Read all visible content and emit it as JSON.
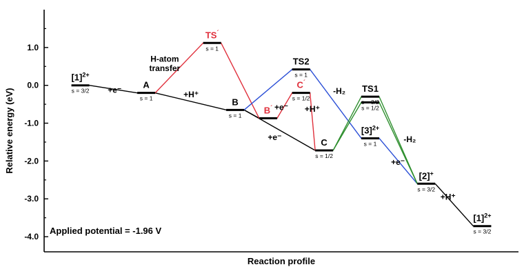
{
  "chart_data": {
    "type": "line",
    "title": "",
    "xlabel": "Reaction profile",
    "ylabel": "Relative energy (eV)",
    "ylim": [
      -4.4,
      2.0
    ],
    "yticks": [
      "1.0",
      "0.0",
      "-1.0",
      "-2.0",
      "-3.0",
      "-4.0"
    ],
    "ytick_values": [
      1.0,
      0.0,
      -1.0,
      -2.0,
      -3.0,
      -4.0
    ],
    "grid": false,
    "legend": "none",
    "annotation": "Applied potential = -1.96 V",
    "colors": {
      "black": "#000000",
      "red": "#e0303c",
      "blue": "#2b4fd6",
      "green": "#2f8f2f",
      "level": "#000000"
    },
    "states": [
      {
        "key": "s1",
        "label": "[1]",
        "sup": "2+",
        "spin": "s = 3/2",
        "y": 0.0,
        "x": 1.0,
        "label_color": "black"
      },
      {
        "key": "A",
        "label": "A",
        "sup": "",
        "spin": "s = 1",
        "y": -0.2,
        "x": 2.0,
        "label_color": "black"
      },
      {
        "key": "TSp",
        "label": "TS",
        "sup": "´",
        "spin": "s = 1",
        "y": 1.12,
        "x": 3.0,
        "label_color": "red"
      },
      {
        "key": "B",
        "label": "B",
        "sup": "",
        "spin": "s = 1",
        "y": -0.65,
        "x": 3.35,
        "label_color": "black"
      },
      {
        "key": "Bp",
        "label": "B",
        "sup": "´",
        "spin": "",
        "y": -0.87,
        "x": 3.85,
        "label_color": "red"
      },
      {
        "key": "TS2",
        "label": "TS2",
        "sup": "",
        "spin": "s = 1",
        "y": 0.42,
        "x": 4.35,
        "label_color": "black"
      },
      {
        "key": "Cp",
        "label": "C",
        "sup": "´",
        "spin": "s = 1/2",
        "y": -0.2,
        "x": 4.35,
        "label_color": "red"
      },
      {
        "key": "C",
        "label": "C",
        "sup": "",
        "spin": "s = 1/2",
        "y": -1.72,
        "x": 4.7,
        "label_color": "black"
      },
      {
        "key": "TS1a",
        "label": "TS1",
        "sup": "",
        "spin": "s = 3/2",
        "y": -0.3,
        "x": 5.4,
        "label_color": "black"
      },
      {
        "key": "TS1b",
        "label": "",
        "sup": "",
        "spin": "s = 1/2",
        "y": -0.45,
        "x": 5.4,
        "label_color": "black"
      },
      {
        "key": "s3",
        "label": "[3]",
        "sup": "2+",
        "spin": "s = 1",
        "y": -1.4,
        "x": 5.4,
        "label_color": "black"
      },
      {
        "key": "s2",
        "label": "[2]",
        "sup": "+",
        "spin": "s = 3/2",
        "y": -2.6,
        "x": 6.25,
        "label_color": "black"
      },
      {
        "key": "s1b",
        "label": "[1]",
        "sup": "2+",
        "spin": "s = 3/2",
        "y": -3.72,
        "x": 7.1,
        "label_color": "black"
      }
    ],
    "series": [
      {
        "color": "black",
        "path": [
          "s1",
          "A",
          "B",
          "C"
        ]
      },
      {
        "color": "black",
        "path": [
          "B",
          "Bp"
        ]
      },
      {
        "color": "black",
        "path": [
          "s2",
          "s1b"
        ]
      },
      {
        "color": "red",
        "path": [
          "A",
          "TSp",
          "Bp",
          "Cp",
          "C"
        ]
      },
      {
        "color": "blue",
        "path": [
          "B",
          "TS2",
          "s3",
          "s2"
        ]
      },
      {
        "color": "green",
        "path": [
          "C",
          "TS1a",
          "s2"
        ]
      },
      {
        "color": "green",
        "path": [
          "C",
          "TS1b",
          "s2"
        ]
      }
    ],
    "step_labels": [
      {
        "text": "H-atom",
        "color": "black",
        "x": 2.28,
        "y": 0.62
      },
      {
        "text": "transfer",
        "color": "black",
        "x": 2.28,
        "y": 0.38
      },
      {
        "text": "+e⁻",
        "color": "black",
        "x": 1.52,
        "y": -0.2
      },
      {
        "text": "+H⁺",
        "color": "black",
        "x": 2.68,
        "y": -0.32
      },
      {
        "text": "+e⁻",
        "color": "black",
        "x": 4.05,
        "y": -0.65
      },
      {
        "text": "+H⁺",
        "color": "black",
        "x": 4.52,
        "y": -0.7
      },
      {
        "text": "+e⁻",
        "color": "black",
        "x": 3.95,
        "y": -1.45
      },
      {
        "text": "-H₂",
        "color": "black",
        "x": 4.93,
        "y": -0.22
      },
      {
        "text": "-H₂",
        "color": "black",
        "x": 6.0,
        "y": -1.5
      },
      {
        "text": "+e⁻",
        "color": "black",
        "x": 5.82,
        "y": -2.1
      },
      {
        "text": "+H⁺",
        "color": "black",
        "x": 6.58,
        "y": -3.02
      }
    ]
  }
}
